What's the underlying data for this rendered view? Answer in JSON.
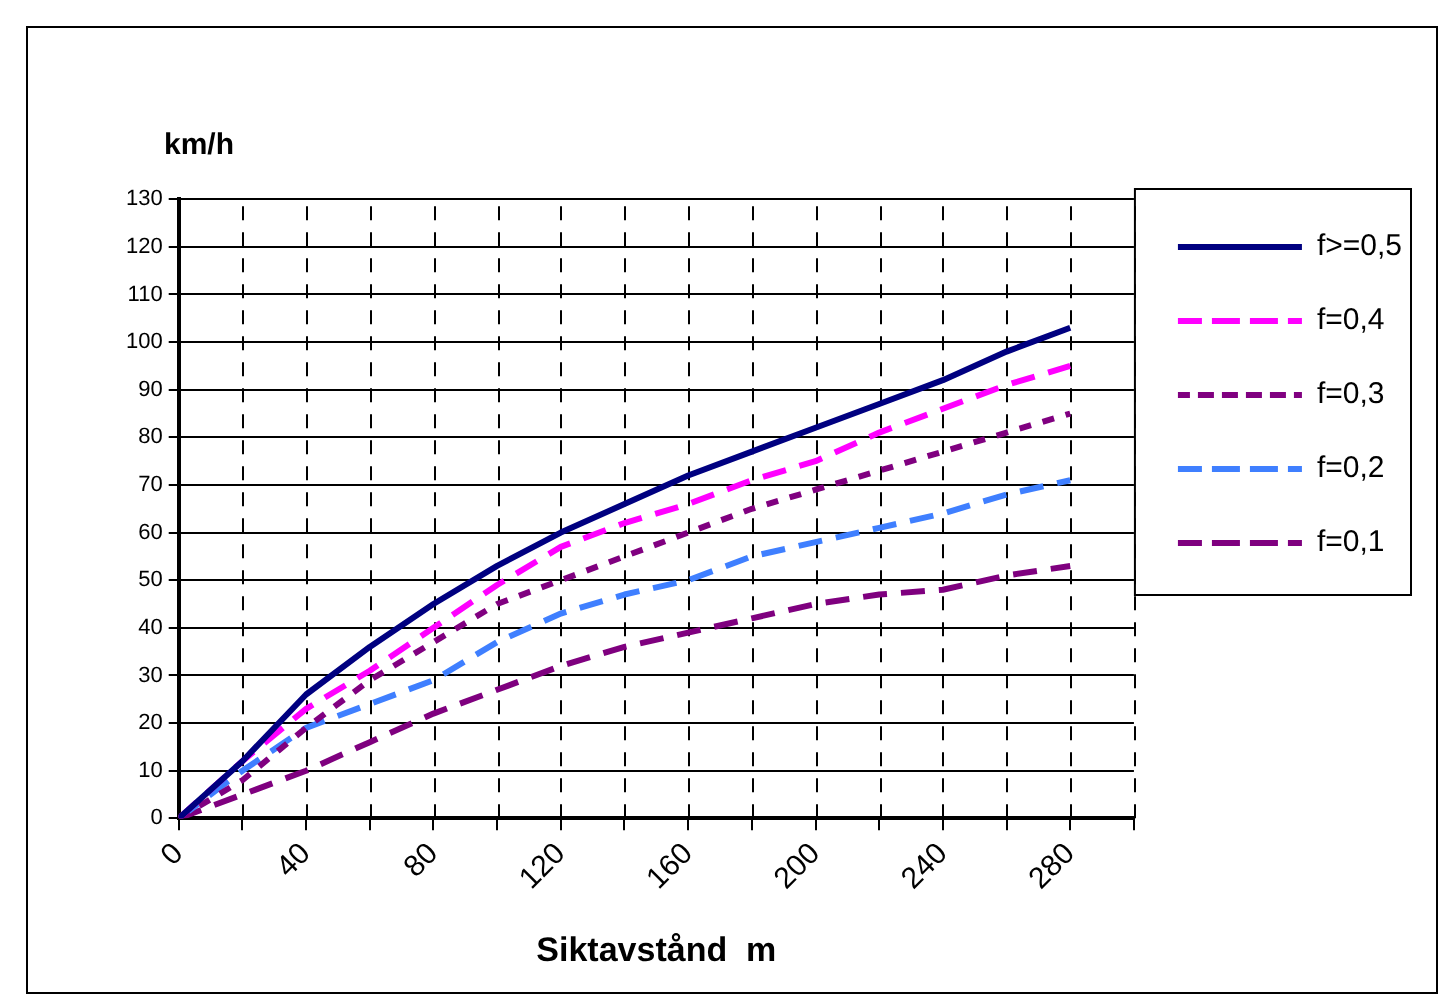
{
  "chart_data": {
    "type": "line",
    "ylabel": "km/h",
    "xlabel": "Siktavstånd  m",
    "x": [
      0,
      20,
      40,
      60,
      80,
      100,
      120,
      140,
      160,
      180,
      200,
      220,
      240,
      260,
      280
    ],
    "series": [
      {
        "name": "f>=0,5",
        "color": "#000080",
        "line_style": "solid",
        "values": [
          0,
          12,
          26,
          36,
          45,
          53,
          60,
          66,
          72,
          77,
          82,
          87,
          92,
          98,
          103
        ]
      },
      {
        "name": "f=0,4",
        "color": "#ff00ff",
        "line_style": "dashed",
        "values": [
          0,
          12,
          23,
          31,
          40,
          49,
          57,
          62,
          66,
          71,
          75,
          81,
          86,
          91,
          95
        ]
      },
      {
        "name": "f=0,3",
        "color": "#800080",
        "line_style": "dotted",
        "values": [
          0,
          8,
          19,
          29,
          37,
          45,
          50,
          55,
          60,
          65,
          69,
          73,
          77,
          81,
          85
        ]
      },
      {
        "name": "f=0,2",
        "color": "#3f7fff",
        "line_style": "dashed",
        "values": [
          0,
          10,
          19,
          24,
          29,
          37,
          43,
          47,
          50,
          55,
          58,
          61,
          64,
          68,
          71
        ]
      },
      {
        "name": "f=0,1",
        "color": "#7f007f",
        "line_style": "dashed",
        "values": [
          0,
          5,
          10,
          16,
          22,
          27,
          32,
          36,
          39,
          42,
          45,
          47,
          48,
          51,
          53
        ]
      }
    ],
    "xlim": [
      0,
      300
    ],
    "xticks": [
      0,
      {
        "value": 20,
        "label": null
      },
      40,
      {
        "value": 60,
        "label": null
      },
      80,
      {
        "value": 100,
        "label": null
      },
      120,
      {
        "value": 140,
        "label": null
      },
      160,
      {
        "value": 180,
        "label": null
      },
      200,
      {
        "value": 220,
        "label": null
      },
      240,
      {
        "value": 260,
        "label": null
      },
      280,
      {
        "value": 300,
        "label": null
      }
    ],
    "ylim": [
      0,
      130
    ],
    "yticks": [
      0,
      10,
      20,
      30,
      40,
      50,
      60,
      70,
      80,
      90,
      100,
      110,
      120,
      130
    ],
    "grid": true,
    "legend": "top right",
    "marker": "none"
  }
}
